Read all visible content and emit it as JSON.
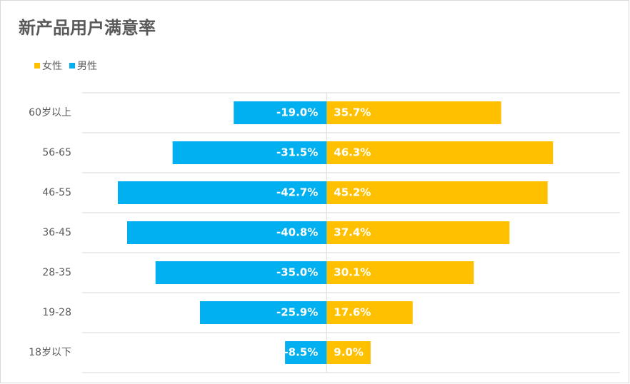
{
  "chart_data": {
    "type": "butterfly_bar",
    "title": "新产品用户满意率",
    "categories": [
      "60岁以上",
      "56-65",
      "46-55",
      "36-45",
      "28-35",
      "19-28",
      "18岁以下"
    ],
    "series": [
      {
        "name": "女性",
        "color": "#FFC000",
        "values": [
          35.7,
          46.3,
          45.2,
          37.4,
          30.1,
          17.6,
          9.0
        ],
        "value_labels": [
          "35.7%",
          "46.3%",
          "45.2%",
          "37.4%",
          "30.1%",
          "17.6%",
          "9.0%"
        ]
      },
      {
        "name": "男性",
        "color": "#00B0F0",
        "values": [
          -19.0,
          -31.5,
          -42.7,
          -40.8,
          -35.0,
          -25.9,
          -8.5
        ],
        "value_labels": [
          "-19.0%",
          "-31.5%",
          "-42.7%",
          "-40.8%",
          "-35.0%",
          "-25.9%",
          "-8.5%"
        ]
      }
    ],
    "xlim": [
      -50,
      60
    ],
    "legend": "top-left"
  }
}
